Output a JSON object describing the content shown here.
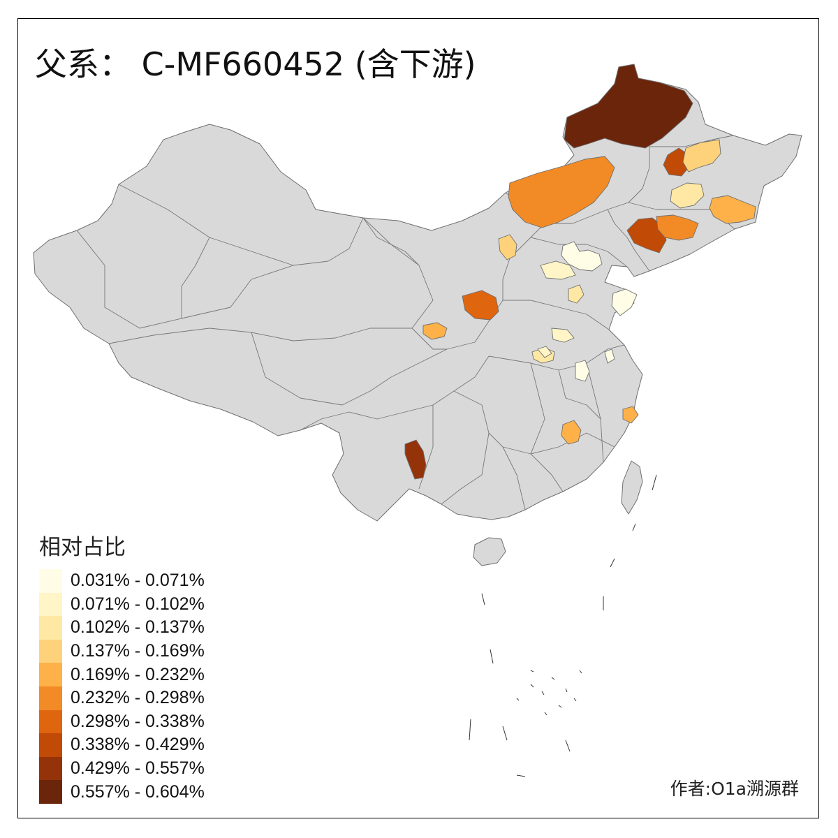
{
  "title": "父系： C-MF660452 (含下游)",
  "legend": {
    "title": "相对占比",
    "bins": [
      {
        "label": "0.031% - 0.071%",
        "color": "#fffde6"
      },
      {
        "label": "0.071% - 0.102%",
        "color": "#fff5c6"
      },
      {
        "label": "0.102% - 0.137%",
        "color": "#fee8a4"
      },
      {
        "label": "0.137% - 0.169%",
        "color": "#fed27a"
      },
      {
        "label": "0.169% - 0.232%",
        "color": "#fdb148"
      },
      {
        "label": "0.232% - 0.298%",
        "color": "#f28b26"
      },
      {
        "label": "0.298% - 0.338%",
        "color": "#e0650f"
      },
      {
        "label": "0.338% - 0.429%",
        "color": "#c04a06"
      },
      {
        "label": "0.429% - 0.557%",
        "color": "#94330a"
      },
      {
        "label": "0.557% - 0.604%",
        "color": "#6b250b"
      }
    ]
  },
  "credit": "作者:O1a溯源群",
  "colors": {
    "base_region": "#d9d9d9",
    "border": "#6e6e6e",
    "background": "#ffffff"
  },
  "highlighted_regions": [
    {
      "id": "hulunbuir",
      "bin": 9
    },
    {
      "id": "qiqihar",
      "bin": 7
    },
    {
      "id": "harbin-area",
      "bin": 3
    },
    {
      "id": "changchun-area",
      "bin": 2
    },
    {
      "id": "mudanjiang-area",
      "bin": 4
    },
    {
      "id": "xilingol",
      "bin": 5
    },
    {
      "id": "liaoning-west",
      "bin": 7
    },
    {
      "id": "liaoning-east",
      "bin": 5
    },
    {
      "id": "baotou",
      "bin": 3
    },
    {
      "id": "beijing-area",
      "bin": 0
    },
    {
      "id": "tianjin-area",
      "bin": 1
    },
    {
      "id": "hebei-south",
      "bin": 2
    },
    {
      "id": "shanxi-central",
      "bin": 6
    },
    {
      "id": "shaanxi-west",
      "bin": 4
    },
    {
      "id": "shandong-west",
      "bin": 1
    },
    {
      "id": "shandong-east",
      "bin": 0
    },
    {
      "id": "henan-east",
      "bin": 2
    },
    {
      "id": "henan-south",
      "bin": 1
    },
    {
      "id": "anhui",
      "bin": 0
    },
    {
      "id": "jiangsu",
      "bin": 0
    },
    {
      "id": "jiangxi",
      "bin": 4
    },
    {
      "id": "zhejiang",
      "bin": 4
    },
    {
      "id": "yunnan-west",
      "bin": 8
    }
  ]
}
